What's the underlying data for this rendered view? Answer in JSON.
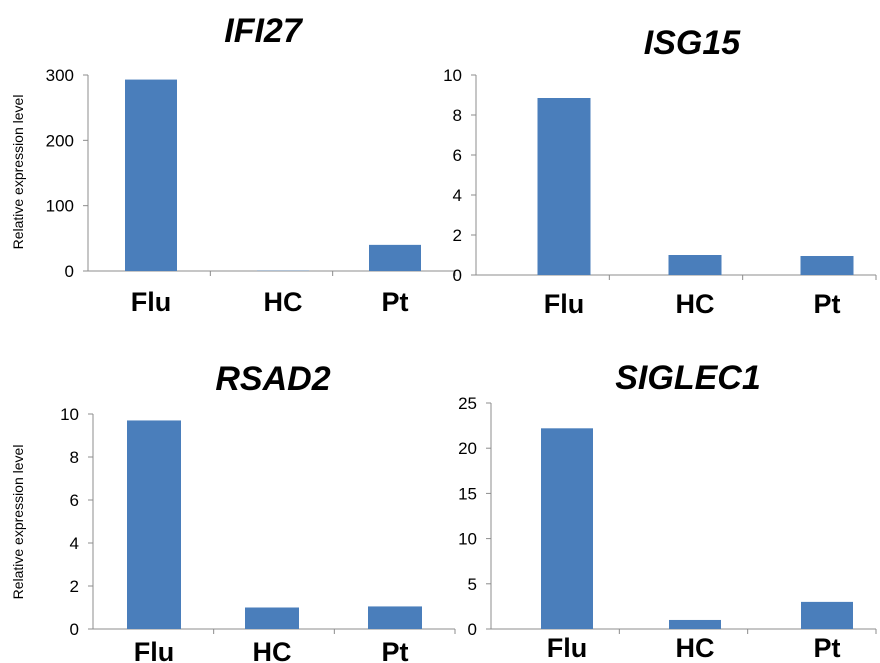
{
  "colors": {
    "bar": "#4a7ebb",
    "axis": "#8c8c8c"
  },
  "chart_data": [
    {
      "type": "bar",
      "title": "IFI27",
      "ylabel": "Relative expression level",
      "categories": [
        "Flu",
        "HC",
        "Pt"
      ],
      "values": [
        293,
        0.5,
        40
      ],
      "ylim": [
        0,
        300
      ],
      "yticks": [
        0,
        100,
        200,
        300
      ],
      "grid": false
    },
    {
      "type": "bar",
      "title": "ISG15",
      "ylabel": "",
      "categories": [
        "Flu",
        "HC",
        "Pt"
      ],
      "values": [
        8.85,
        1.0,
        0.95
      ],
      "ylim": [
        0,
        10
      ],
      "yticks": [
        0,
        2,
        4,
        6,
        8,
        10
      ],
      "grid": false
    },
    {
      "type": "bar",
      "title": "RSAD2",
      "ylabel": "Relative expression level",
      "categories": [
        "Flu",
        "HC",
        "Pt"
      ],
      "values": [
        9.7,
        1.0,
        1.05
      ],
      "ylim": [
        0,
        10
      ],
      "yticks": [
        0,
        2,
        4,
        6,
        8,
        10
      ],
      "grid": false
    },
    {
      "type": "bar",
      "title": "SIGLEC1",
      "ylabel": "",
      "categories": [
        "Flu",
        "HC",
        "Pt"
      ],
      "values": [
        22.2,
        1.0,
        3.0
      ],
      "ylim": [
        0,
        25
      ],
      "yticks": [
        0,
        5,
        10,
        15,
        20,
        25
      ],
      "grid": false
    }
  ]
}
